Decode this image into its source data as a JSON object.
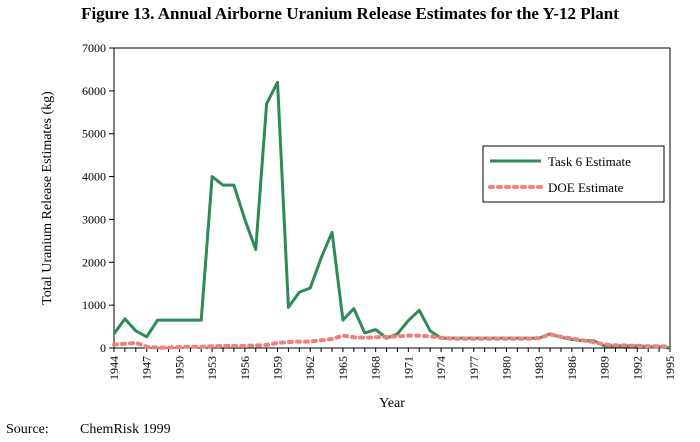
{
  "figure_title": "Figure 13. Annual Airborne Uranium Release Estimates for the Y-12 Plant",
  "source": {
    "label": "Source:",
    "text": "ChemRisk 1999"
  },
  "colors": {
    "task6": "#2e8b57",
    "doe": "#f08080",
    "frame": "#000000"
  },
  "chart_data": {
    "type": "line",
    "title": "",
    "xlabel": "Year",
    "ylabel": "Total Uranium Release Estimates (kg)",
    "xlim": [
      1944,
      1995
    ],
    "ylim": [
      0,
      7000
    ],
    "yticks": [
      0,
      1000,
      2000,
      3000,
      4000,
      5000,
      6000,
      7000
    ],
    "xticks": [
      1944,
      1947,
      1950,
      1953,
      1956,
      1959,
      1962,
      1965,
      1968,
      1971,
      1974,
      1977,
      1980,
      1983,
      1986,
      1989,
      1992,
      1995
    ],
    "grid": false,
    "legend": "right",
    "x": [
      1944,
      1945,
      1946,
      1947,
      1948,
      1949,
      1950,
      1951,
      1952,
      1953,
      1954,
      1955,
      1956,
      1957,
      1958,
      1959,
      1960,
      1961,
      1962,
      1963,
      1964,
      1965,
      1966,
      1967,
      1968,
      1969,
      1970,
      1971,
      1972,
      1973,
      1974,
      1975,
      1976,
      1977,
      1978,
      1979,
      1980,
      1981,
      1982,
      1983,
      1984,
      1985,
      1986,
      1987,
      1988,
      1989,
      1990,
      1991,
      1992,
      1993,
      1994,
      1995
    ],
    "series": [
      {
        "name": "Task 6 Estimate",
        "style": "solid",
        "values": [
          330,
          680,
          400,
          260,
          650,
          650,
          650,
          650,
          650,
          4000,
          3800,
          3800,
          3000,
          2300,
          5700,
          6200,
          950,
          1300,
          1400,
          2100,
          2700,
          650,
          920,
          350,
          430,
          230,
          330,
          640,
          880,
          400,
          230,
          230,
          230,
          230,
          230,
          230,
          230,
          230,
          230,
          230,
          330,
          250,
          200,
          170,
          170,
          50,
          50,
          50,
          50,
          30,
          30,
          0
        ]
      },
      {
        "name": "DOE Estimate",
        "style": "dotted",
        "values": [
          80,
          100,
          120,
          30,
          10,
          10,
          20,
          30,
          30,
          40,
          50,
          50,
          50,
          60,
          70,
          120,
          140,
          150,
          150,
          180,
          210,
          290,
          250,
          240,
          250,
          260,
          270,
          290,
          290,
          270,
          240,
          220,
          220,
          220,
          220,
          220,
          220,
          220,
          220,
          230,
          320,
          260,
          220,
          180,
          140,
          80,
          60,
          60,
          50,
          40,
          40,
          30
        ]
      }
    ]
  }
}
